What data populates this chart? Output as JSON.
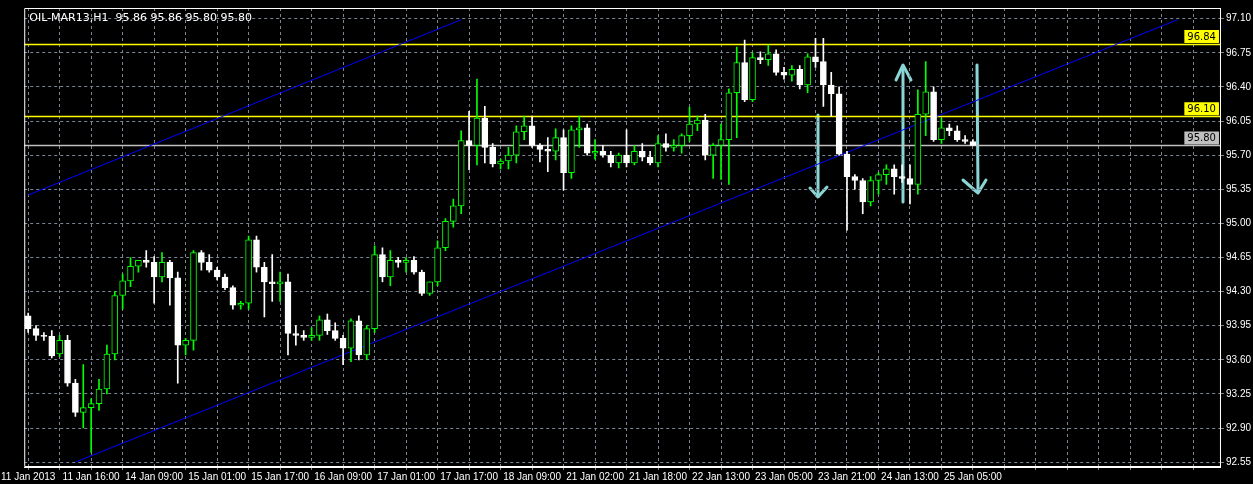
{
  "chart_data": {
    "type": "candlestick",
    "title": "OIL-MAR13,H1  95.86 95.86 95.80 95.80",
    "colors": [
      "#ffffff",
      "#ffffff",
      "#ffffff",
      "#ffffff",
      "#00ff00",
      "#ffffff",
      "#ffffff",
      "#00ff00",
      "#00ff00",
      "#00ff00",
      "#00ff00",
      "#00ff00",
      "#00ff00",
      "#00ff00",
      "#00ff00",
      "#ffffff",
      "#ffffff",
      "#00ff00",
      "#ffffff",
      "#ffffff",
      "#00ff00",
      "#00ff00",
      "#ffffff",
      "#ffffff",
      "#ffffff",
      "#ffffff",
      "#ffffff",
      "#00ff00",
      "#00ff00",
      "#ffffff",
      "#ffffff",
      "#ffffff",
      "#00ff00",
      "#ffffff",
      "#ffffff",
      "#ffffff",
      "#00ff00",
      "#00ff00",
      "#ffffff",
      "#ffffff",
      "#ffffff",
      "#00ff00",
      "#ffffff",
      "#00ff00",
      "#00ff00",
      "#ffffff",
      "#00ff00",
      "#ffffff",
      "#00ff00",
      "#ffffff",
      "#ffffff",
      "#00ff00",
      "#00ff00",
      "#00ff00",
      "#00ff00",
      "#00ff00",
      "#ffffff",
      "#00ff00",
      "#ffffff",
      "#ffffff",
      "#00ff00",
      "#00ff00",
      "#00ff00",
      "#00ff00",
      "#ffffff",
      "#ffffff",
      "#ffffff",
      "#00ff00",
      "#ffffff",
      "#00ff00",
      "#00ff00",
      "#ffffff",
      "#00ff00",
      "#ffffff",
      "#ffffff",
      "#00ff00",
      "#ffffff",
      "#00ff00",
      "#ffffff",
      "#ffffff",
      "#00ff00",
      "#ffffff",
      "#00ff00",
      "#00ff00",
      "#00ff00",
      "#00ff00",
      "#ffffff",
      "#00ff00",
      "#00ff00",
      "#00ff00",
      "#00ff00",
      "#ffffff",
      "#00ff00",
      "#ffffff",
      "#00ff00",
      "#ffffff",
      "#ffffff",
      "#00ff00",
      "#ffffff",
      "#00ff00",
      "#ffffff",
      "#ffffff",
      "#ffffff",
      "#ffffff",
      "#ffffff",
      "#ffffff",
      "#ffffff",
      "#00ff00",
      "#00ff00",
      "#00ff00",
      "#ffffff",
      "#ffffff",
      "#ffffff",
      "#00ff00",
      "#00ff00",
      "#ffffff",
      "#00ff00",
      "#ffffff",
      "#ffffff",
      "#ffffff",
      "#ffffff",
      null,
      null,
      null,
      null,
      null,
      null,
      null,
      null,
      null,
      null,
      null,
      null,
      null,
      null,
      null,
      null,
      null,
      null,
      null,
      null,
      null,
      null,
      null,
      null,
      null,
      null,
      null,
      null,
      null,
      null,
      null
    ],
    "categories": [
      "11 Jan 2013",
      null,
      null,
      null,
      null,
      null,
      null,
      null,
      "11 Jan 16:00",
      null,
      null,
      null,
      null,
      null,
      null,
      null,
      "14 Jan 09:00",
      null,
      null,
      null,
      null,
      null,
      null,
      null,
      "15 Jan 01:00",
      null,
      null,
      null,
      null,
      null,
      null,
      null,
      "15 Jan 17:00",
      null,
      null,
      null,
      null,
      null,
      null,
      null,
      "16 Jan 09:00",
      null,
      null,
      null,
      null,
      null,
      null,
      null,
      "17 Jan 01:00",
      null,
      null,
      null,
      null,
      null,
      null,
      null,
      "17 Jan 17:00",
      null,
      null,
      null,
      null,
      null,
      null,
      null,
      "18 Jan 09:00",
      null,
      null,
      null,
      null,
      null,
      null,
      null,
      "21 Jan 02:00",
      null,
      null,
      null,
      null,
      null,
      null,
      null,
      "21 Jan 18:00",
      null,
      null,
      null,
      null,
      null,
      null,
      null,
      "22 Jan 13:00",
      null,
      null,
      null,
      null,
      null,
      null,
      null,
      "23 Jan 05:00",
      null,
      null,
      null,
      null,
      null,
      null,
      null,
      "23 Jan 21:00",
      null,
      null,
      null,
      null,
      null,
      null,
      null,
      "24 Jan 13:00",
      null,
      null,
      null,
      null,
      null,
      null,
      null,
      "25 Jan 05:00",
      null,
      null,
      null,
      null,
      null,
      null,
      null,
      null,
      null,
      null,
      null,
      null,
      null,
      null,
      null,
      null,
      null,
      null,
      null,
      null,
      null,
      null,
      null,
      null,
      null,
      null,
      null,
      null,
      null,
      null,
      null
    ],
    "ohlc": [
      [
        94.05,
        94.08,
        93.88,
        93.92
      ],
      [
        93.92,
        93.95,
        93.8,
        93.85
      ],
      [
        93.85,
        93.88,
        93.8,
        93.84
      ],
      [
        93.84,
        93.9,
        93.62,
        93.64
      ],
      [
        93.66,
        93.85,
        93.63,
        93.8
      ],
      [
        93.8,
        93.85,
        93.33,
        93.36
      ],
      [
        93.36,
        93.4,
        93.02,
        93.06
      ],
      [
        93.06,
        93.55,
        92.9,
        93.11
      ],
      [
        93.11,
        93.2,
        92.65,
        93.15
      ],
      [
        93.15,
        93.4,
        93.08,
        93.3
      ],
      [
        93.3,
        93.75,
        93.25,
        93.66
      ],
      [
        93.66,
        94.3,
        93.6,
        94.26
      ],
      [
        94.26,
        94.48,
        94.12,
        94.41
      ],
      [
        94.41,
        94.65,
        94.35,
        94.56
      ],
      [
        94.56,
        94.62,
        94.5,
        94.62
      ],
      [
        94.62,
        94.72,
        94.55,
        94.6
      ],
      [
        94.6,
        94.66,
        94.18,
        94.45
      ],
      [
        94.45,
        94.7,
        94.4,
        94.6
      ],
      [
        94.6,
        94.62,
        94.16,
        94.44
      ],
      [
        94.44,
        94.5,
        93.36,
        93.75
      ],
      [
        93.75,
        93.82,
        93.65,
        93.8
      ],
      [
        93.8,
        94.72,
        93.7,
        94.7
      ],
      [
        94.7,
        94.72,
        94.52,
        94.6
      ],
      [
        94.6,
        94.68,
        94.5,
        94.52
      ],
      [
        94.52,
        94.55,
        94.42,
        94.45
      ],
      [
        94.45,
        94.48,
        94.32,
        94.34
      ],
      [
        94.34,
        94.36,
        94.12,
        94.16
      ],
      [
        94.16,
        94.2,
        94.12,
        94.18
      ],
      [
        94.18,
        94.87,
        94.12,
        94.83
      ],
      [
        94.83,
        94.87,
        94.5,
        94.55
      ],
      [
        94.55,
        94.6,
        94.04,
        94.4
      ],
      [
        94.4,
        94.68,
        94.2,
        94.38
      ],
      [
        94.38,
        94.5,
        94.2,
        94.4
      ],
      [
        94.4,
        94.48,
        93.65,
        93.87
      ],
      [
        93.87,
        93.95,
        93.75,
        93.85
      ],
      [
        93.85,
        93.9,
        93.8,
        93.83
      ],
      [
        93.83,
        93.93,
        93.8,
        93.85
      ],
      [
        93.85,
        94.05,
        93.8,
        94.01
      ],
      [
        94.01,
        94.07,
        93.86,
        93.9
      ],
      [
        93.9,
        93.98,
        93.8,
        93.82
      ],
      [
        93.82,
        93.85,
        93.55,
        93.72
      ],
      [
        93.72,
        94.02,
        93.58,
        94.0
      ],
      [
        94.0,
        94.05,
        93.6,
        93.65
      ],
      [
        93.65,
        93.95,
        93.6,
        93.92
      ],
      [
        93.92,
        94.77,
        93.88,
        94.68
      ],
      [
        94.68,
        94.75,
        94.4,
        94.45
      ],
      [
        94.45,
        94.72,
        94.36,
        94.62
      ],
      [
        94.62,
        94.65,
        94.55,
        94.6
      ],
      [
        94.6,
        94.65,
        94.5,
        94.62
      ],
      [
        94.62,
        94.66,
        94.48,
        94.5
      ],
      [
        94.5,
        94.52,
        94.26,
        94.28
      ],
      [
        94.28,
        94.4,
        94.26,
        94.4
      ],
      [
        94.4,
        94.82,
        94.36,
        94.75
      ],
      [
        94.75,
        95.05,
        94.72,
        95.02
      ],
      [
        95.02,
        95.25,
        94.96,
        95.18
      ],
      [
        95.18,
        95.95,
        95.1,
        95.85
      ],
      [
        95.85,
        96.15,
        95.55,
        95.8
      ],
      [
        95.8,
        96.48,
        95.6,
        96.08
      ],
      [
        96.08,
        96.2,
        95.62,
        95.78
      ],
      [
        95.78,
        95.82,
        95.58,
        95.61
      ],
      [
        95.61,
        95.66,
        95.56,
        95.64
      ],
      [
        95.64,
        95.78,
        95.56,
        95.7
      ],
      [
        95.7,
        96.0,
        95.62,
        95.94
      ],
      [
        95.94,
        96.1,
        95.86,
        96.0
      ],
      [
        96.0,
        96.1,
        95.78,
        95.8
      ],
      [
        95.8,
        95.82,
        95.63,
        95.76
      ],
      [
        95.76,
        95.88,
        95.53,
        95.74
      ],
      [
        95.74,
        95.97,
        95.65,
        95.88
      ],
      [
        95.88,
        95.96,
        95.34,
        95.52
      ],
      [
        95.52,
        96.0,
        95.46,
        95.96
      ],
      [
        95.96,
        96.1,
        95.78,
        95.98
      ],
      [
        95.98,
        96.02,
        95.7,
        95.72
      ],
      [
        95.72,
        95.86,
        95.66,
        95.74
      ],
      [
        95.74,
        95.8,
        95.68,
        95.7
      ],
      [
        95.7,
        95.74,
        95.58,
        95.62
      ],
      [
        95.62,
        95.72,
        95.57,
        95.7
      ],
      [
        95.7,
        95.96,
        95.58,
        95.62
      ],
      [
        95.62,
        95.8,
        95.6,
        95.74
      ],
      [
        95.74,
        95.82,
        95.64,
        95.68
      ],
      [
        95.68,
        95.74,
        95.6,
        95.62
      ],
      [
        95.62,
        95.9,
        95.58,
        95.82
      ],
      [
        95.82,
        95.92,
        95.74,
        95.78
      ],
      [
        95.78,
        95.86,
        95.74,
        95.8
      ],
      [
        95.8,
        95.92,
        95.72,
        95.9
      ],
      [
        95.9,
        96.19,
        95.84,
        96.02
      ],
      [
        96.02,
        96.1,
        95.95,
        96.06
      ],
      [
        96.06,
        96.12,
        95.65,
        95.7
      ],
      [
        95.7,
        95.82,
        95.46,
        95.8
      ],
      [
        95.8,
        96.02,
        95.45,
        95.86
      ],
      [
        95.86,
        96.38,
        95.4,
        96.34
      ],
      [
        96.34,
        96.81,
        95.88,
        96.65
      ],
      [
        96.65,
        96.88,
        96.25,
        96.27
      ],
      [
        96.27,
        96.75,
        96.25,
        96.7
      ],
      [
        96.7,
        96.76,
        96.64,
        96.68
      ],
      [
        96.68,
        96.83,
        96.62,
        96.74
      ],
      [
        96.74,
        96.78,
        96.52,
        96.55
      ],
      [
        96.55,
        96.6,
        96.48,
        96.52
      ],
      [
        96.52,
        96.62,
        96.46,
        96.58
      ],
      [
        96.58,
        96.62,
        96.38,
        96.42
      ],
      [
        96.42,
        96.74,
        96.34,
        96.71
      ],
      [
        96.71,
        96.9,
        96.6,
        96.66
      ],
      [
        96.66,
        96.9,
        96.2,
        96.42
      ],
      [
        96.42,
        96.55,
        96.1,
        96.33
      ],
      [
        96.33,
        96.4,
        95.7,
        95.71
      ],
      [
        95.71,
        95.74,
        94.93,
        95.48
      ],
      [
        95.48,
        95.5,
        95.35,
        95.44
      ],
      [
        95.44,
        95.46,
        95.1,
        95.22
      ],
      [
        95.22,
        95.48,
        95.18,
        95.44
      ],
      [
        95.44,
        95.52,
        95.3,
        95.5
      ],
      [
        95.5,
        95.6,
        95.4,
        95.56
      ],
      [
        95.56,
        95.6,
        95.3,
        95.48
      ],
      [
        95.48,
        95.6,
        95.42,
        95.46
      ],
      [
        95.46,
        95.6,
        95.2,
        95.4
      ],
      [
        95.4,
        96.37,
        95.3,
        96.12
      ],
      [
        96.12,
        96.66,
        95.9,
        96.35
      ],
      [
        96.35,
        96.4,
        95.84,
        95.86
      ],
      [
        95.86,
        96.08,
        95.82,
        95.98
      ],
      [
        95.98,
        96.02,
        95.9,
        95.95
      ],
      [
        95.95,
        96.0,
        95.84,
        95.86
      ],
      [
        95.86,
        95.9,
        95.82,
        95.84
      ],
      [
        95.84,
        95.86,
        95.8,
        95.8
      ],
      null,
      null,
      null,
      null,
      null,
      null,
      null,
      null,
      null,
      null,
      null,
      null,
      null,
      null,
      null,
      null,
      null,
      null,
      null,
      null,
      null,
      null,
      null,
      null,
      null,
      null,
      null,
      null,
      null,
      null,
      null
    ],
    "series": [
      {
        "type": "line",
        "color": "#0000ff",
        "values": [
          95.29,
          null,
          null,
          null,
          null,
          null,
          null,
          null,
          null,
          null,
          null,
          null,
          null,
          null,
          null,
          null,
          null,
          null,
          null,
          null,
          null,
          null,
          null,
          null,
          null,
          null,
          null,
          null,
          null,
          null,
          null,
          null,
          null,
          null,
          null,
          null,
          null,
          null,
          null,
          null,
          null,
          null,
          null,
          null,
          null,
          null,
          null,
          null,
          null,
          null,
          null,
          null,
          null,
          null,
          null,
          97.09,
          null,
          null,
          null,
          null,
          null,
          null,
          null,
          null,
          null,
          null,
          null,
          null,
          null,
          null,
          null,
          null,
          null,
          null,
          null,
          null,
          null,
          null,
          null,
          null,
          null,
          null,
          null,
          null,
          null,
          null,
          null,
          null,
          null,
          null,
          null,
          null,
          null,
          null,
          null,
          null,
          null,
          null,
          null,
          null,
          null,
          null,
          null,
          null,
          null,
          null,
          null,
          null,
          null,
          null,
          null,
          null,
          null,
          null,
          null,
          null,
          null,
          null,
          null,
          null,
          null,
          null,
          null,
          null,
          null,
          null,
          null,
          null,
          null,
          null,
          null,
          null,
          null,
          null,
          null,
          null,
          null,
          null,
          null,
          null,
          null,
          null,
          null,
          null,
          null,
          null,
          null,
          null,
          null,
          null,
          null,
          null
        ]
      },
      {
        "type": "line",
        "color": "#0000ff",
        "values": [
          null,
          null,
          null,
          null,
          null,
          null,
          92.55,
          null,
          null,
          null,
          null,
          null,
          null,
          null,
          null,
          null,
          null,
          null,
          null,
          null,
          null,
          null,
          null,
          null,
          null,
          null,
          null,
          null,
          null,
          null,
          null,
          null,
          null,
          null,
          null,
          null,
          null,
          null,
          null,
          null,
          null,
          null,
          null,
          null,
          null,
          null,
          null,
          null,
          null,
          null,
          null,
          null,
          null,
          null,
          null,
          null,
          null,
          null,
          null,
          null,
          null,
          null,
          null,
          null,
          null,
          null,
          null,
          null,
          null,
          null,
          null,
          null,
          null,
          null,
          null,
          null,
          null,
          null,
          null,
          null,
          null,
          null,
          null,
          null,
          null,
          null,
          null,
          null,
          null,
          null,
          null,
          null,
          null,
          null,
          null,
          null,
          null,
          null,
          null,
          null,
          null,
          null,
          null,
          null,
          null,
          null,
          null,
          null,
          null,
          null,
          null,
          null,
          null,
          null,
          null,
          null,
          null,
          null,
          null,
          null,
          null,
          null,
          null,
          null,
          null,
          null,
          null,
          null,
          null,
          null,
          null,
          null,
          null,
          null,
          null,
          null,
          null,
          null,
          null,
          null,
          null,
          null,
          null,
          null,
          null,
          null,
          97.09,
          null,
          null,
          null,
          null,
          null
        ]
      }
    ],
    "ylim": [
      92.5,
      97.21
    ],
    "yticks": [
      {
        "value": 92.55,
        "label": "92.55"
      },
      {
        "value": 92.9,
        "label": "92.90"
      },
      {
        "value": 93.25,
        "label": "93.25"
      },
      {
        "value": 93.6,
        "label": "93.60"
      },
      {
        "value": 93.95,
        "label": "93.95"
      },
      {
        "value": 94.3,
        "label": "94.30"
      },
      {
        "value": 94.65,
        "label": "94.65"
      },
      {
        "value": 95,
        "label": "95.00"
      },
      {
        "value": 95.35,
        "label": "95.35"
      },
      {
        "value": 95.7,
        "label": "95.70"
      },
      {
        "value": 96.05,
        "label": "96.05"
      },
      {
        "value": 96.4,
        "label": "96.40"
      },
      {
        "value": 96.75,
        "label": "96.75"
      },
      {
        "value": 97.1,
        "label": "97.10"
      }
    ],
    "ref_lines": [
      {
        "axis": "y",
        "value": 96.84,
        "label": "96.84",
        "color": "#ffff00"
      },
      {
        "axis": "y",
        "value": 96.1,
        "label": "96.10",
        "color": "#ffff00"
      },
      {
        "axis": "y",
        "value": 95.8,
        "label": "95.80",
        "color": "#c0c0c0"
      }
    ],
    "grid": true,
    "legend": false
  }
}
